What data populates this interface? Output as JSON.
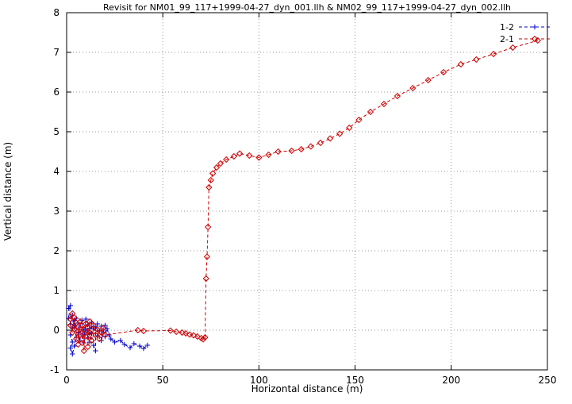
{
  "chart_data": {
    "type": "scatter",
    "title": "Revisit for NM01_99_117+1999-04-27_dyn_001.llh & NM02_99_117+1999-04-27_dyn_002.llh",
    "xlabel": "Horizontal distance (m)",
    "ylabel": "Vertical distance (m)",
    "xlim": [
      0,
      250
    ],
    "ylim": [
      -1,
      8
    ],
    "xticks": [
      0,
      50,
      100,
      150,
      200,
      250
    ],
    "yticks": [
      -1,
      0,
      1,
      2,
      3,
      4,
      5,
      6,
      7,
      8
    ],
    "grid": true,
    "legend_position": "top-right",
    "background": "#ffffff",
    "grid_color": "#999999",
    "border_color": "#000000",
    "series": [
      {
        "name": "1-2",
        "color": "#0000cc",
        "marker": "plus",
        "line": "dashed",
        "points": [
          [
            1,
            0.55
          ],
          [
            2,
            0.62
          ],
          [
            1,
            0.3
          ],
          [
            3,
            0.38
          ],
          [
            2,
            0.15
          ],
          [
            4,
            0.25
          ],
          [
            3,
            0.05
          ],
          [
            2,
            -0.12
          ],
          [
            3,
            -0.3
          ],
          [
            2,
            -0.45
          ],
          [
            3,
            -0.6
          ],
          [
            4,
            -0.4
          ],
          [
            5,
            -0.18
          ],
          [
            4,
            0.1
          ],
          [
            5,
            0.3
          ],
          [
            6,
            0.18
          ],
          [
            6,
            -0.05
          ],
          [
            7,
            -0.28
          ],
          [
            7,
            0.08
          ],
          [
            8,
            0.25
          ],
          [
            8,
            -0.12
          ],
          [
            9,
            0.02
          ],
          [
            9,
            -0.32
          ],
          [
            10,
            0.28
          ],
          [
            10,
            -0.02
          ],
          [
            11,
            0.14
          ],
          [
            11,
            -0.18
          ],
          [
            12,
            0.05
          ],
          [
            12,
            -0.3
          ],
          [
            13,
            0.2
          ],
          [
            13,
            -0.08
          ],
          [
            14,
            0.1
          ],
          [
            14,
            -0.38
          ],
          [
            15,
            -0.52
          ],
          [
            15,
            0.04
          ],
          [
            16,
            0.16
          ],
          [
            16,
            -0.14
          ],
          [
            17,
            -0.02
          ],
          [
            18,
            0.1
          ],
          [
            18,
            -0.26
          ],
          [
            19,
            -0.06
          ],
          [
            20,
            0.12
          ],
          [
            20,
            -0.16
          ],
          [
            21,
            0.04
          ],
          [
            22,
            -0.12
          ],
          [
            23,
            -0.22
          ],
          [
            25,
            -0.3
          ],
          [
            28,
            -0.26
          ],
          [
            30,
            -0.36
          ],
          [
            33,
            -0.44
          ],
          [
            35,
            -0.34
          ],
          [
            38,
            -0.4
          ],
          [
            40,
            -0.46
          ],
          [
            42,
            -0.38
          ]
        ]
      },
      {
        "name": "2-1",
        "color": "#cc0000",
        "marker": "diamond",
        "line": "dashed",
        "points": [
          [
            2,
            0.28
          ],
          [
            3,
            0.42
          ],
          [
            2,
            0.12
          ],
          [
            3,
            -0.06
          ],
          [
            4,
            0.32
          ],
          [
            4,
            0.02
          ],
          [
            5,
            0.18
          ],
          [
            5,
            -0.22
          ],
          [
            6,
            0.08
          ],
          [
            6,
            -0.36
          ],
          [
            7,
            0.22
          ],
          [
            7,
            -0.12
          ],
          [
            8,
            0.12
          ],
          [
            8,
            -0.32
          ],
          [
            9,
            0.02
          ],
          [
            9,
            -0.52
          ],
          [
            10,
            0.16
          ],
          [
            10,
            -0.16
          ],
          [
            11,
            0.06
          ],
          [
            11,
            -0.42
          ],
          [
            12,
            0.22
          ],
          [
            12,
            -0.06
          ],
          [
            13,
            -0.26
          ],
          [
            14,
            0.12
          ],
          [
            15,
            -0.12
          ],
          [
            16,
            0.02
          ],
          [
            17,
            -0.22
          ],
          [
            18,
            -0.06
          ],
          [
            19,
            0.06
          ],
          [
            20,
            -0.12
          ],
          [
            37,
            0
          ],
          [
            40,
            -0.02
          ],
          [
            54,
            -0.01
          ],
          [
            57,
            -0.04
          ],
          [
            60,
            -0.06
          ],
          [
            62,
            -0.08
          ],
          [
            64,
            -0.11
          ],
          [
            66,
            -0.13
          ],
          [
            68,
            -0.16
          ],
          [
            70,
            -0.2
          ],
          [
            71,
            -0.23
          ],
          [
            72,
            -0.18
          ],
          [
            72.5,
            1.3
          ],
          [
            73,
            1.85
          ],
          [
            73.5,
            2.6
          ],
          [
            74,
            3.6
          ],
          [
            75,
            3.78
          ],
          [
            76,
            3.95
          ],
          [
            78,
            4.1
          ],
          [
            80,
            4.2
          ],
          [
            83,
            4.3
          ],
          [
            87,
            4.38
          ],
          [
            90,
            4.45
          ],
          [
            95,
            4.4
          ],
          [
            100,
            4.35
          ],
          [
            105,
            4.42
          ],
          [
            110,
            4.5
          ],
          [
            117,
            4.52
          ],
          [
            122,
            4.56
          ],
          [
            127,
            4.63
          ],
          [
            132,
            4.72
          ],
          [
            137,
            4.83
          ],
          [
            142,
            4.95
          ],
          [
            147,
            5.1
          ],
          [
            152,
            5.3
          ],
          [
            158,
            5.5
          ],
          [
            165,
            5.7
          ],
          [
            172,
            5.9
          ],
          [
            180,
            6.1
          ],
          [
            188,
            6.3
          ],
          [
            196,
            6.5
          ],
          [
            205,
            6.7
          ],
          [
            213,
            6.82
          ],
          [
            222,
            6.96
          ],
          [
            232,
            7.12
          ],
          [
            245,
            7.3
          ]
        ]
      }
    ]
  }
}
